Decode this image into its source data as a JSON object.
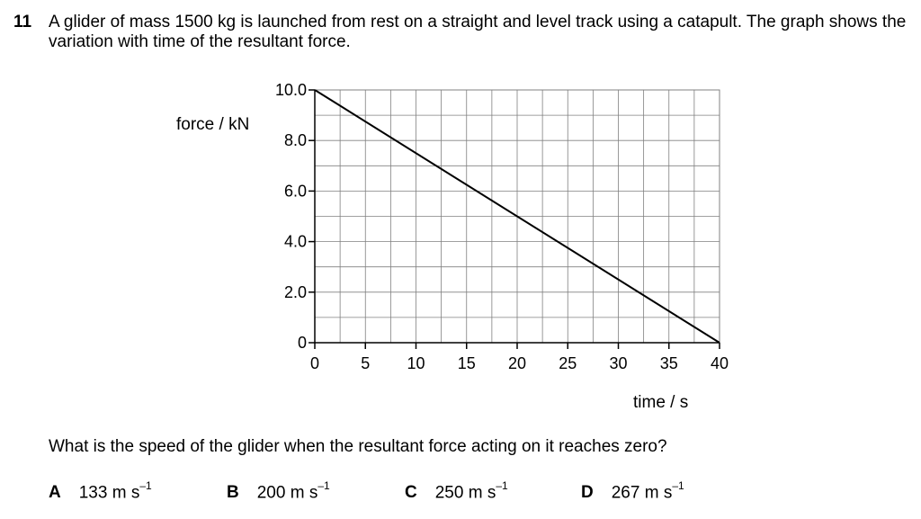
{
  "question": {
    "number": "11",
    "stem": "A glider of mass 1500 kg is launched from rest on a straight and level track using a catapult. The graph shows the variation with time of the resultant force.",
    "prompt": "What is the speed of the glider when the resultant force acting on it reaches zero?"
  },
  "options": [
    {
      "letter": "A",
      "value": "133 m s",
      "exp": "–1"
    },
    {
      "letter": "B",
      "value": "200 m s",
      "exp": "–1"
    },
    {
      "letter": "C",
      "value": "250 m s",
      "exp": "–1"
    },
    {
      "letter": "D",
      "value": "267 m s",
      "exp": "–1"
    }
  ],
  "chart_data": {
    "type": "line",
    "title": "",
    "xlabel": "time / s",
    "ylabel": "force / kN",
    "xlim": [
      0,
      40
    ],
    "ylim": [
      0,
      10
    ],
    "x_ticks": [
      0,
      5,
      10,
      15,
      20,
      25,
      30,
      35,
      40
    ],
    "x_tick_labels": [
      "0",
      "5",
      "10",
      "15",
      "20",
      "25",
      "30",
      "35",
      "40"
    ],
    "y_ticks": [
      0,
      2,
      4,
      6,
      8,
      10
    ],
    "y_tick_labels": [
      "0",
      "2.0",
      "4.0",
      "6.0",
      "8.0",
      "10.0"
    ],
    "grid": true,
    "series": [
      {
        "x": [
          0,
          40
        ],
        "y": [
          10,
          0
        ]
      }
    ],
    "colors": {
      "line": "#000000",
      "grid": "#808080",
      "axis": "#000000"
    }
  }
}
